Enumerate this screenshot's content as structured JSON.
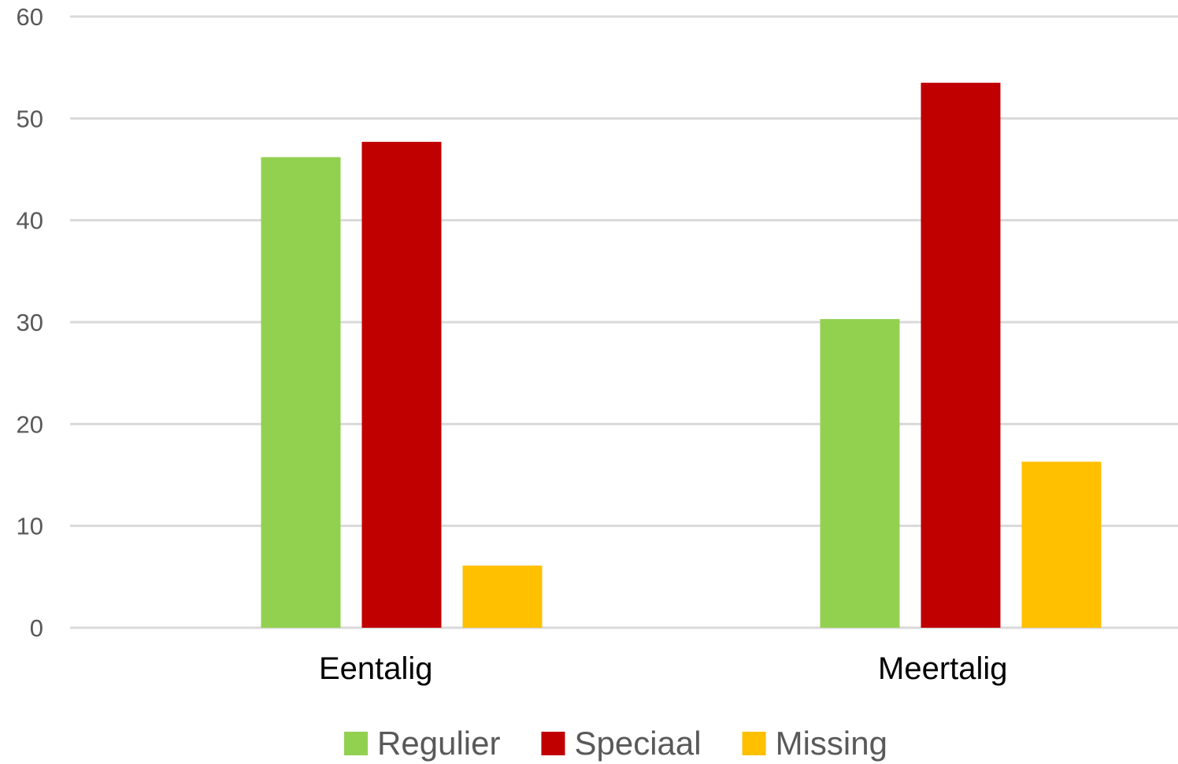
{
  "chart_data": {
    "type": "bar",
    "title": "",
    "xlabel": "",
    "ylabel": "",
    "categories": [
      "Eentalig",
      "Meertalig"
    ],
    "series": [
      {
        "name": "Regulier",
        "values": [
          46.2,
          30.3
        ],
        "color": "#92d050"
      },
      {
        "name": "Speciaal",
        "values": [
          47.7,
          53.5
        ],
        "color": "#c00000"
      },
      {
        "name": "Missing",
        "values": [
          6.1,
          16.3
        ],
        "color": "#ffc000"
      }
    ],
    "ylim": [
      0,
      60
    ],
    "yticks": [
      0,
      10,
      20,
      30,
      40,
      50,
      60
    ],
    "grid": true,
    "legend_position": "bottom"
  }
}
